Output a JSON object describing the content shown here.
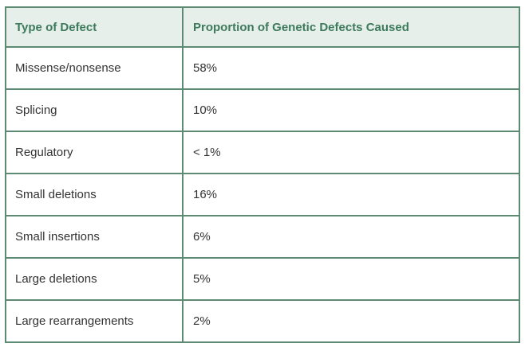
{
  "table": {
    "headers": [
      "Type of Defect",
      "Proportion of Genetic Defects Caused"
    ],
    "rows": [
      [
        "Missense/nonsense",
        "58%"
      ],
      [
        "Splicing",
        "10%"
      ],
      [
        "Regulatory",
        "< 1%"
      ],
      [
        "Small deletions",
        "16%"
      ],
      [
        "Small insertions",
        "6%"
      ],
      [
        "Large deletions",
        "5%"
      ],
      [
        "Large rearrangements",
        "2%"
      ]
    ]
  },
  "colors": {
    "border": "#5d8a73",
    "header_background": "#e6efea",
    "header_text": "#3d7a5c",
    "body_text": "#333333"
  }
}
